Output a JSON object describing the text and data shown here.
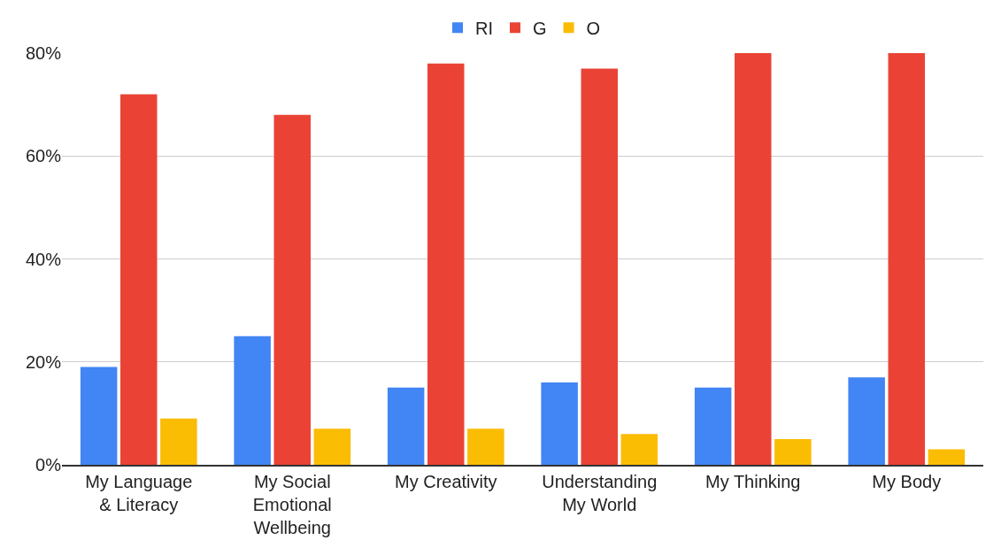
{
  "chart_data": {
    "type": "bar",
    "categories": [
      "My Language\n& Literacy",
      "My Social\nEmotional\nWellbeing",
      "My Creativity",
      "Understanding\nMy World",
      "My Thinking",
      "My Body"
    ],
    "series": [
      {
        "name": "RI",
        "color": "#4285f4",
        "values": [
          19,
          25,
          15,
          16,
          15,
          17
        ]
      },
      {
        "name": "G",
        "color": "#ea4335",
        "values": [
          72,
          68,
          78,
          77,
          80,
          80
        ]
      },
      {
        "name": "O",
        "color": "#fbbc04",
        "values": [
          9,
          7,
          7,
          6,
          5,
          3
        ]
      }
    ],
    "ylim": [
      0,
      80
    ],
    "yticks": [
      {
        "value": 0,
        "label": "0%"
      },
      {
        "value": 20,
        "label": "20%"
      },
      {
        "value": 40,
        "label": "40%"
      },
      {
        "value": 60,
        "label": "60%"
      },
      {
        "value": 80,
        "label": "80%"
      }
    ],
    "grid": "y",
    "legend": "top"
  }
}
